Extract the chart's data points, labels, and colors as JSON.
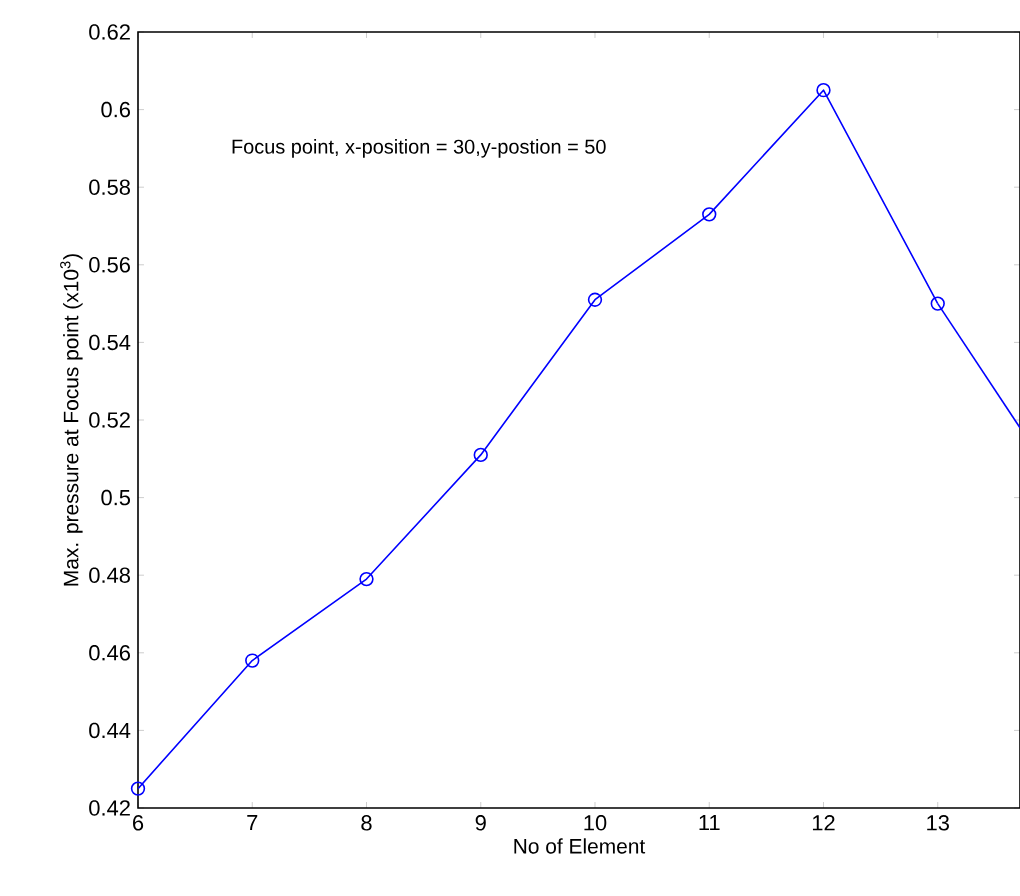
{
  "chart_data": {
    "type": "line",
    "xlabel": "No of Element",
    "ylabel": "Max. pressure at Focus point (x10$^{3}$)",
    "annotations": [
      "Focus point, x-position = 30,y-postion = 50"
    ],
    "series": [
      {
        "x": [
          6,
          7,
          8,
          9,
          10,
          11,
          12,
          13
        ],
        "values": [
          0.425,
          0.458,
          0.479,
          0.511,
          0.551,
          0.573,
          0.605,
          0.55
        ],
        "color": "#0000ff",
        "marker": "circle"
      },
      {
        "x": [
          13,
          13.72
        ],
        "values": [
          0.55,
          0.518
        ],
        "color": "#0000ff",
        "marker": "none"
      }
    ],
    "xlim": [
      6,
      13.72
    ],
    "xticks": [
      6,
      7,
      8,
      9,
      10,
      11,
      12,
      13
    ],
    "ylim": [
      0.42,
      0.62
    ],
    "yticks": [
      0.42,
      0.44,
      0.46,
      0.48,
      0.5,
      0.52,
      0.54,
      0.56,
      0.58,
      0.6,
      0.62
    ],
    "line_style": "solid"
  }
}
